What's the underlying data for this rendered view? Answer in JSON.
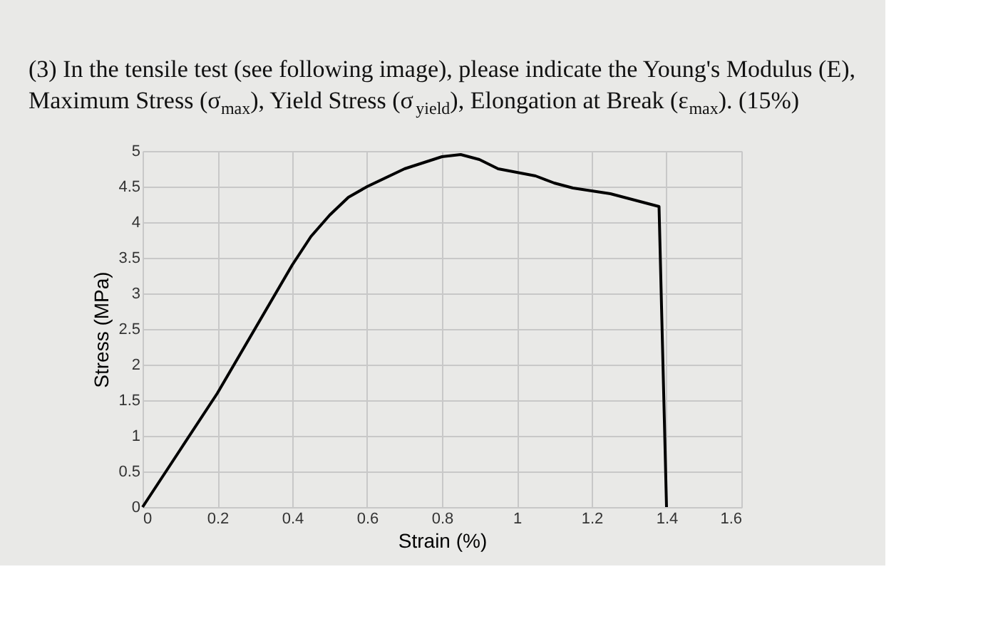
{
  "chart_data": {
    "type": "line",
    "title": "(3) In the tensile test (see following image), please indicate the Young's Modulus (E), Maximum Stress (σ$_{max}$), Yield Stress (σ$_{yield}$), Elongation at Break (ε$_{max}$). (15%)",
    "xlabel": "Strain (%)",
    "ylabel": "Stress (MPa)",
    "series": [
      {
        "color": "#000000",
        "x": [
          0,
          0.1,
          0.2,
          0.3,
          0.4,
          0.45,
          0.5,
          0.55,
          0.6,
          0.7,
          0.8,
          0.85,
          0.9,
          0.95,
          1.0,
          1.05,
          1.1,
          1.15,
          1.25,
          1.38,
          1.4
        ],
        "values": [
          0,
          0.8,
          1.6,
          2.5,
          3.4,
          3.8,
          4.1,
          4.35,
          4.5,
          4.75,
          4.92,
          4.95,
          4.88,
          4.75,
          4.7,
          4.65,
          4.55,
          4.48,
          4.4,
          4.22,
          0
        ]
      }
    ],
    "xlim": [
      0,
      1.6
    ],
    "xticks": [
      0,
      0.2,
      0.4,
      0.6,
      0.8,
      1,
      1.2,
      1.4,
      1.6
    ],
    "ylim": [
      0,
      5
    ],
    "yticks": [
      0,
      0.5,
      1,
      1.5,
      2,
      2.5,
      3,
      3.5,
      4,
      4.5,
      5
    ],
    "grid": true,
    "marker": "none",
    "line_style": "solid"
  }
}
